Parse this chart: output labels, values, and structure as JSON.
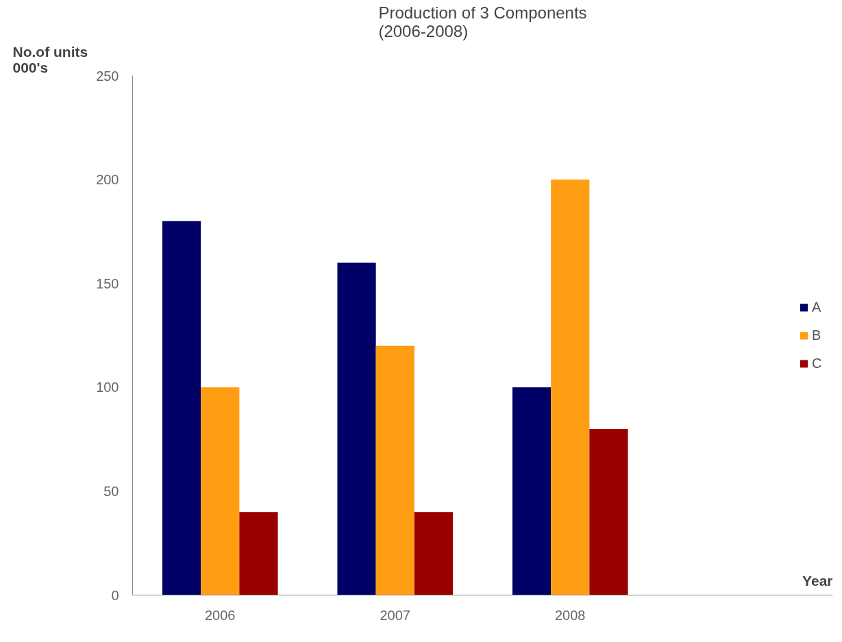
{
  "chart_data": {
    "type": "bar",
    "title": "Production of 3 Components\n(2006-2008)",
    "ylabel": "No.of units 000's",
    "xlabel": "Year",
    "categories": [
      "2006",
      "2007",
      "2008",
      null
    ],
    "series": [
      {
        "name": "A",
        "color": "#000066",
        "values": [
          180,
          160,
          100,
          null
        ]
      },
      {
        "name": "B",
        "color": "#ff9e13",
        "values": [
          100,
          120,
          200,
          null
        ]
      },
      {
        "name": "C",
        "color": "#990000",
        "values": [
          40,
          40,
          80,
          null
        ]
      }
    ],
    "ylim": [
      0,
      250
    ],
    "yticks": [
      0,
      50,
      100,
      150,
      200,
      250
    ],
    "grid": false,
    "legend": "right"
  }
}
